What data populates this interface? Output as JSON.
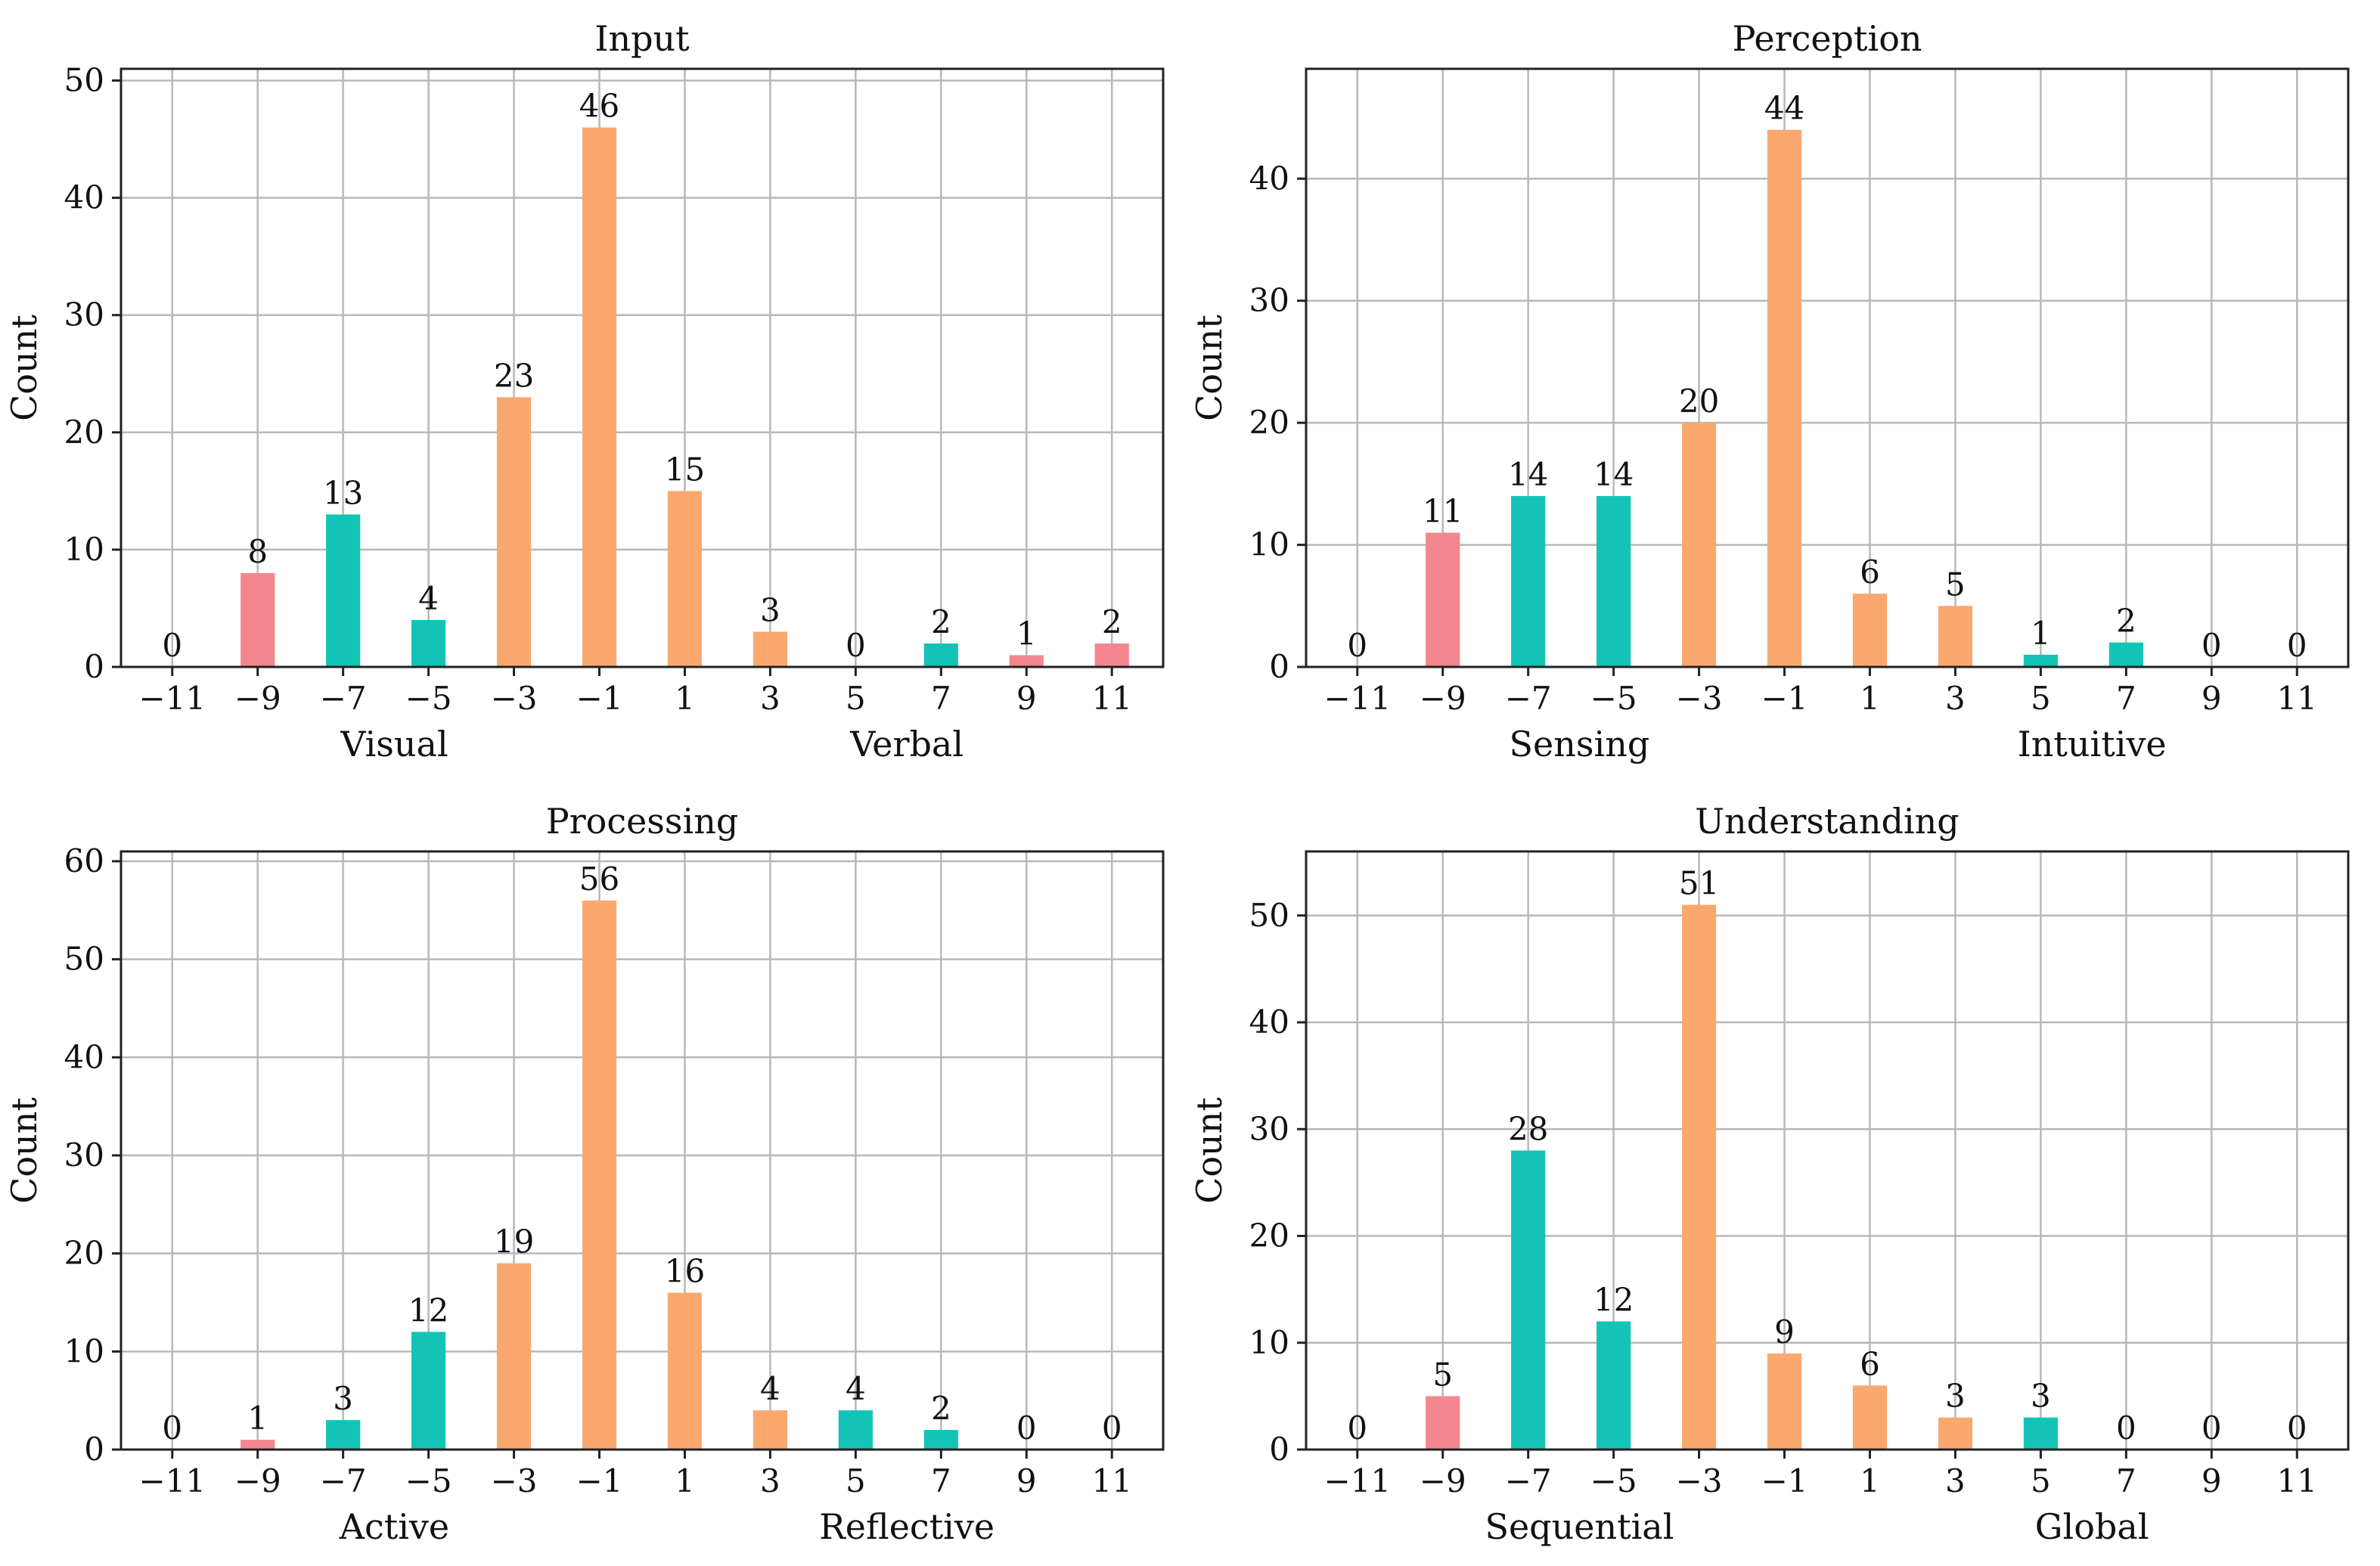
{
  "figure": {
    "colors": {
      "pink": "#f4868f",
      "teal": "#13c4b6",
      "orange": "#fba86f"
    }
  },
  "chart_data": [
    {
      "type": "bar",
      "title": "Input",
      "ylabel": "Count",
      "xlabel_left": "Visual",
      "xlabel_right": "Verbal",
      "categories": [
        "−11",
        "−9",
        "−7",
        "−5",
        "−3",
        "−1",
        "1",
        "3",
        "5",
        "7",
        "9",
        "11"
      ],
      "values": [
        0,
        8,
        13,
        4,
        23,
        46,
        15,
        3,
        0,
        2,
        1,
        2
      ],
      "bar_colors": [
        "pink",
        "pink",
        "teal",
        "teal",
        "orange",
        "orange",
        "orange",
        "orange",
        "teal",
        "teal",
        "pink",
        "pink"
      ],
      "ylim": [
        0,
        51
      ],
      "yticks": [
        0,
        10,
        20,
        30,
        40,
        50
      ],
      "grid": true
    },
    {
      "type": "bar",
      "title": "Perception",
      "ylabel": "Count",
      "xlabel_left": "Sensing",
      "xlabel_right": "Intuitive",
      "categories": [
        "−11",
        "−9",
        "−7",
        "−5",
        "−3",
        "−1",
        "1",
        "3",
        "5",
        "7",
        "9",
        "11"
      ],
      "values": [
        0,
        11,
        14,
        14,
        20,
        44,
        6,
        5,
        1,
        2,
        0,
        0
      ],
      "bar_colors": [
        "pink",
        "pink",
        "teal",
        "teal",
        "orange",
        "orange",
        "orange",
        "orange",
        "teal",
        "teal",
        "pink",
        "pink"
      ],
      "ylim": [
        0,
        49
      ],
      "yticks": [
        0,
        10,
        20,
        30,
        40
      ],
      "grid": true
    },
    {
      "type": "bar",
      "title": "Processing",
      "ylabel": "Count",
      "xlabel_left": "Active",
      "xlabel_right": "Reflective",
      "categories": [
        "−11",
        "−9",
        "−7",
        "−5",
        "−3",
        "−1",
        "1",
        "3",
        "5",
        "7",
        "9",
        "11"
      ],
      "values": [
        0,
        1,
        3,
        12,
        19,
        56,
        16,
        4,
        4,
        2,
        0,
        0
      ],
      "bar_colors": [
        "pink",
        "pink",
        "teal",
        "teal",
        "orange",
        "orange",
        "orange",
        "orange",
        "teal",
        "teal",
        "pink",
        "pink"
      ],
      "ylim": [
        0,
        61
      ],
      "yticks": [
        0,
        10,
        20,
        30,
        40,
        50,
        60
      ],
      "grid": true
    },
    {
      "type": "bar",
      "title": "Understanding",
      "ylabel": "Count",
      "xlabel_left": "Sequential",
      "xlabel_right": "Global",
      "categories": [
        "−11",
        "−9",
        "−7",
        "−5",
        "−3",
        "−1",
        "1",
        "3",
        "5",
        "7",
        "9",
        "11"
      ],
      "values": [
        0,
        5,
        28,
        12,
        51,
        9,
        6,
        3,
        3,
        0,
        0,
        0
      ],
      "bar_colors": [
        "pink",
        "pink",
        "teal",
        "teal",
        "orange",
        "orange",
        "orange",
        "orange",
        "teal",
        "teal",
        "pink",
        "pink"
      ],
      "ylim": [
        0,
        56
      ],
      "yticks": [
        0,
        10,
        20,
        30,
        40,
        50
      ],
      "grid": true
    }
  ]
}
